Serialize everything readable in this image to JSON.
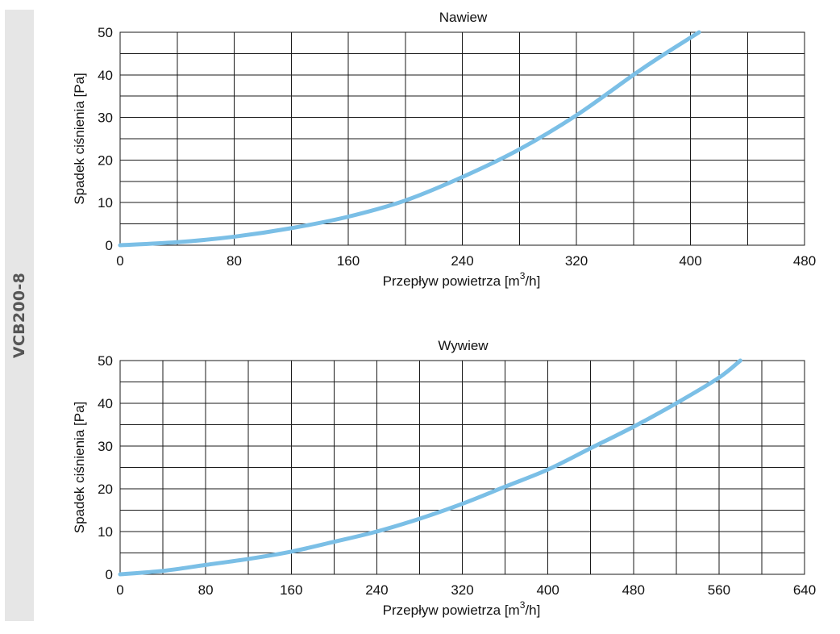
{
  "side_label": "VCB200-8",
  "colors": {
    "curve": "#7bbfe6",
    "grid": "#1a1a1a",
    "side_band": "#e6e6e6",
    "side_text": "#555555"
  },
  "chart_data": [
    {
      "type": "line",
      "title": "Nawiew",
      "xlabel_main": "Przepływ powietrza [m",
      "xlabel_sup": "3",
      "xlabel_tail": "/h]",
      "ylabel": "Spadek ciśnienia [Pa]",
      "xlim": [
        0,
        480
      ],
      "ylim": [
        0,
        50
      ],
      "xticks": [
        0,
        80,
        160,
        240,
        320,
        400,
        480
      ],
      "yticks": [
        0,
        10,
        20,
        30,
        40,
        50
      ],
      "x_grid_step": 40,
      "y_grid_step": 5,
      "grid": true,
      "series": [
        {
          "x": [
            0,
            40,
            80,
            120,
            160,
            200,
            240,
            280,
            320,
            360,
            380,
            406
          ],
          "y": [
            0,
            0.7,
            2.0,
            4.0,
            6.7,
            10.5,
            16.0,
            22.5,
            30.5,
            40.0,
            44.5,
            50.0
          ]
        }
      ]
    },
    {
      "type": "line",
      "title": "Wywiew",
      "xlabel_main": "Przepływ powietrza [m",
      "xlabel_sup": "3",
      "xlabel_tail": "/h]",
      "ylabel": "Spadek ciśnienia [Pa]",
      "xlim": [
        0,
        640
      ],
      "ylim": [
        0,
        50
      ],
      "xticks": [
        0,
        80,
        160,
        240,
        320,
        400,
        480,
        560,
        640
      ],
      "yticks": [
        0,
        10,
        20,
        30,
        40,
        50
      ],
      "x_grid_step": 40,
      "y_grid_step": 5,
      "grid": true,
      "series": [
        {
          "x": [
            0,
            40,
            80,
            120,
            160,
            200,
            240,
            280,
            320,
            360,
            400,
            440,
            480,
            520,
            560,
            580
          ],
          "y": [
            0,
            0.8,
            2.2,
            3.6,
            5.3,
            7.6,
            10.0,
            13.0,
            16.5,
            20.5,
            24.5,
            29.5,
            34.5,
            40.0,
            46.0,
            50.0
          ]
        }
      ]
    }
  ]
}
